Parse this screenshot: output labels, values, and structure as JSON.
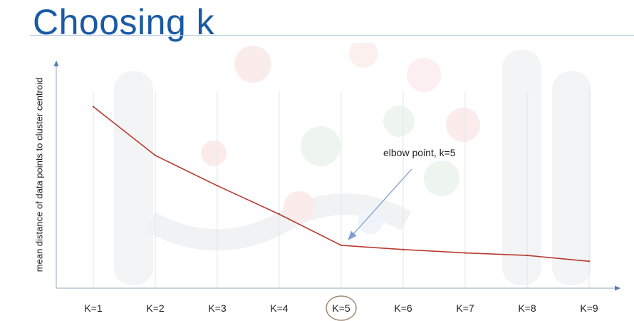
{
  "slide": {
    "title": "Choosing k"
  },
  "chart_data": {
    "type": "line",
    "title": "",
    "xlabel": "",
    "ylabel": "mean distance of data points to cluster centroid",
    "categories": [
      "K=1",
      "K=2",
      "K=3",
      "K=4",
      "K=5",
      "K=6",
      "K=7",
      "K=8",
      "K=9"
    ],
    "series": [
      {
        "values": [
          10.0,
          7.1,
          5.3,
          3.6,
          1.75,
          1.5,
          1.3,
          1.15,
          0.8
        ]
      }
    ],
    "ylim": [
      -0.8,
      12.7
    ],
    "grid": "vertical",
    "highlighted_category": "K=5",
    "annotation": {
      "text": "elbow point, k=5",
      "target": "K=5"
    },
    "colors": {
      "line": "#b83a30",
      "axis": "#a6b6c7",
      "grid": "#e3e6ea",
      "arrow": "#7f9fcf",
      "highlight_circle": "#9a8870"
    }
  }
}
